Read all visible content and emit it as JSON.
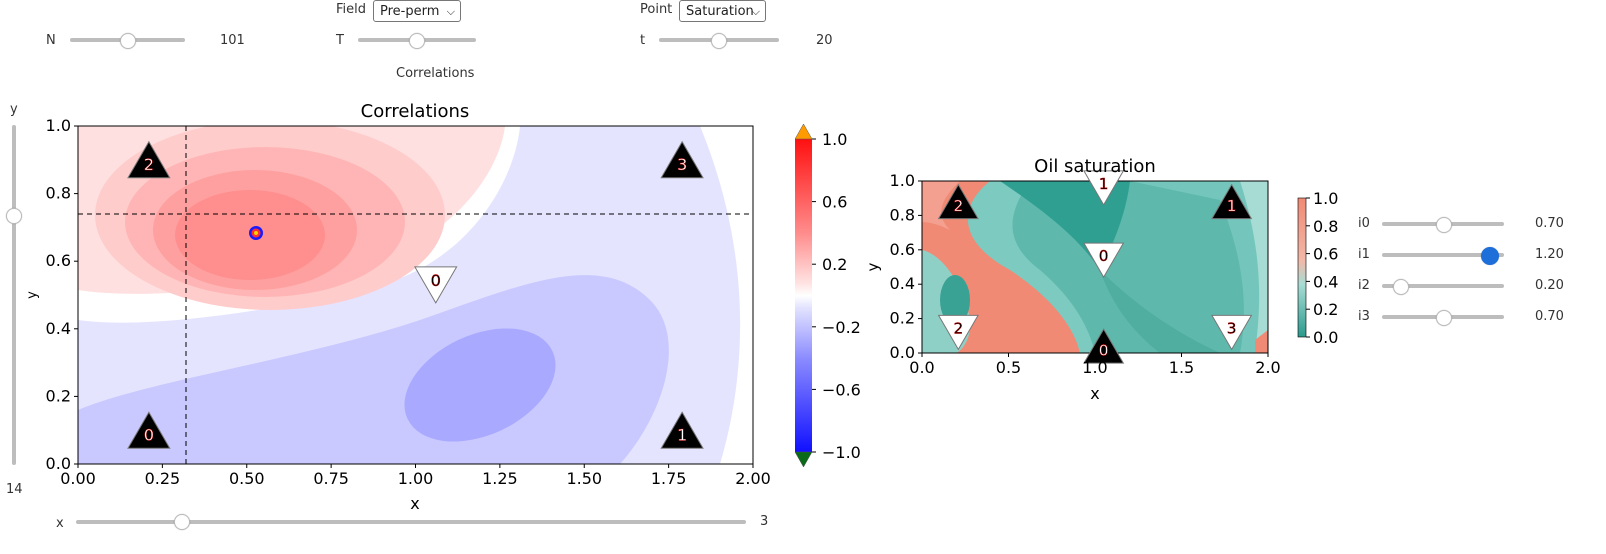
{
  "controls": {
    "field": {
      "label": "Field",
      "value": "Pre-perm"
    },
    "point": {
      "label": "Point",
      "value": "Saturation"
    },
    "n_slider": {
      "label": "N",
      "value": "101",
      "fraction": 0.5
    },
    "t_upper_slider": {
      "label": "T",
      "value": "",
      "fraction": 0.5
    },
    "t_lower_slider": {
      "label": "t",
      "value": "20",
      "fraction": 0.5
    },
    "section_label": "Correlations",
    "y_slider": {
      "label": "y",
      "value": "14",
      "fraction": 0.73
    },
    "x_slider": {
      "label": "x",
      "value": "3",
      "fraction": 0.16
    },
    "i_sliders": [
      {
        "label": "i0",
        "value": "0.70",
        "fraction": 0.5
      },
      {
        "label": "i1",
        "value": "1.20",
        "fraction": 0.88
      },
      {
        "label": "i2",
        "value": "0.20",
        "fraction": 0.15
      },
      {
        "label": "i3",
        "value": "0.70",
        "fraction": 0.5
      }
    ]
  },
  "chart_data": [
    {
      "type": "heatmap",
      "title": "Correlations",
      "xlabel": "x",
      "ylabel": "y",
      "xlim": [
        0,
        2
      ],
      "ylim": [
        0,
        1
      ],
      "xticks": [
        "0.00",
        "0.25",
        "0.50",
        "0.75",
        "1.00",
        "1.25",
        "1.50",
        "1.75",
        "2.00"
      ],
      "yticks": [
        "0.0",
        "0.2",
        "0.4",
        "0.6",
        "0.8",
        "1.0"
      ],
      "colorbar": {
        "ticks": [
          "1.0",
          "0.6",
          "0.2",
          "−0.2",
          "−0.6",
          "−1.0"
        ],
        "range": [
          -1,
          1
        ]
      },
      "crosshair": {
        "x": 0.32,
        "y": 0.735
      },
      "marker": {
        "x": 0.53,
        "y": 0.685
      },
      "wells": [
        {
          "label": "2",
          "x": 0.21,
          "y": 0.9,
          "kind": "producer"
        },
        {
          "label": "3",
          "x": 1.79,
          "y": 0.9,
          "kind": "producer"
        },
        {
          "label": "0",
          "x": 0.21,
          "y": 0.1,
          "kind": "producer"
        },
        {
          "label": "1",
          "x": 1.79,
          "y": 0.1,
          "kind": "producer"
        },
        {
          "label": "0",
          "x": 1.06,
          "y": 0.53,
          "kind": "injector"
        }
      ]
    },
    {
      "type": "heatmap",
      "title": "Oil saturation",
      "xlabel": "x",
      "ylabel": "y",
      "xlim": [
        0,
        2
      ],
      "ylim": [
        0,
        1
      ],
      "xticks": [
        "0.0",
        "0.5",
        "1.0",
        "1.5",
        "2.0"
      ],
      "yticks": [
        "0.0",
        "0.2",
        "0.4",
        "0.6",
        "0.8",
        "1.0"
      ],
      "colorbar": {
        "ticks": [
          "1.0",
          "0.8",
          "0.6",
          "0.4",
          "0.2",
          "0.0"
        ],
        "range": [
          0,
          1
        ]
      },
      "wells": [
        {
          "label": "2",
          "x": 0.21,
          "y": 0.88,
          "kind": "producer"
        },
        {
          "label": "1",
          "x": 1.79,
          "y": 0.88,
          "kind": "producer"
        },
        {
          "label": "0",
          "x": 1.05,
          "y": 0.04,
          "kind": "producer"
        },
        {
          "label": "1",
          "x": 1.05,
          "y": 0.96,
          "kind": "injector"
        },
        {
          "label": "0",
          "x": 1.05,
          "y": 0.54,
          "kind": "injector"
        },
        {
          "label": "2",
          "x": 0.21,
          "y": 0.12,
          "kind": "injector"
        },
        {
          "label": "3",
          "x": 1.79,
          "y": 0.12,
          "kind": "injector"
        }
      ]
    }
  ]
}
